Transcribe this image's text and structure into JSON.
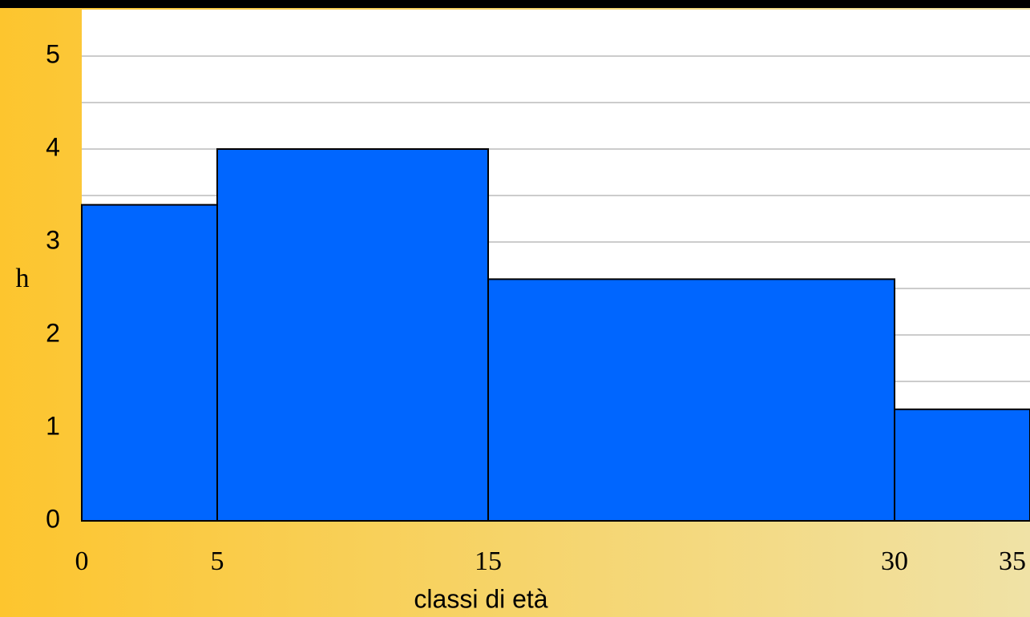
{
  "chart_data": {
    "type": "histogram",
    "xlabel": "classi di età",
    "ylabel": "h",
    "bins": [
      0,
      5,
      15,
      30,
      35
    ],
    "values": [
      3.4,
      4,
      2.6,
      1.2
    ],
    "color": "#0066ff",
    "xlim": [
      0,
      35
    ],
    "xticks": [
      0,
      5,
      15,
      30,
      35
    ],
    "ylim": [
      0,
      5.5
    ],
    "yticks": [
      0,
      1,
      2,
      3,
      4,
      5
    ],
    "yminor": [
      0.5,
      1.5,
      2.5,
      3.5,
      4.5
    ],
    "grid": true
  }
}
